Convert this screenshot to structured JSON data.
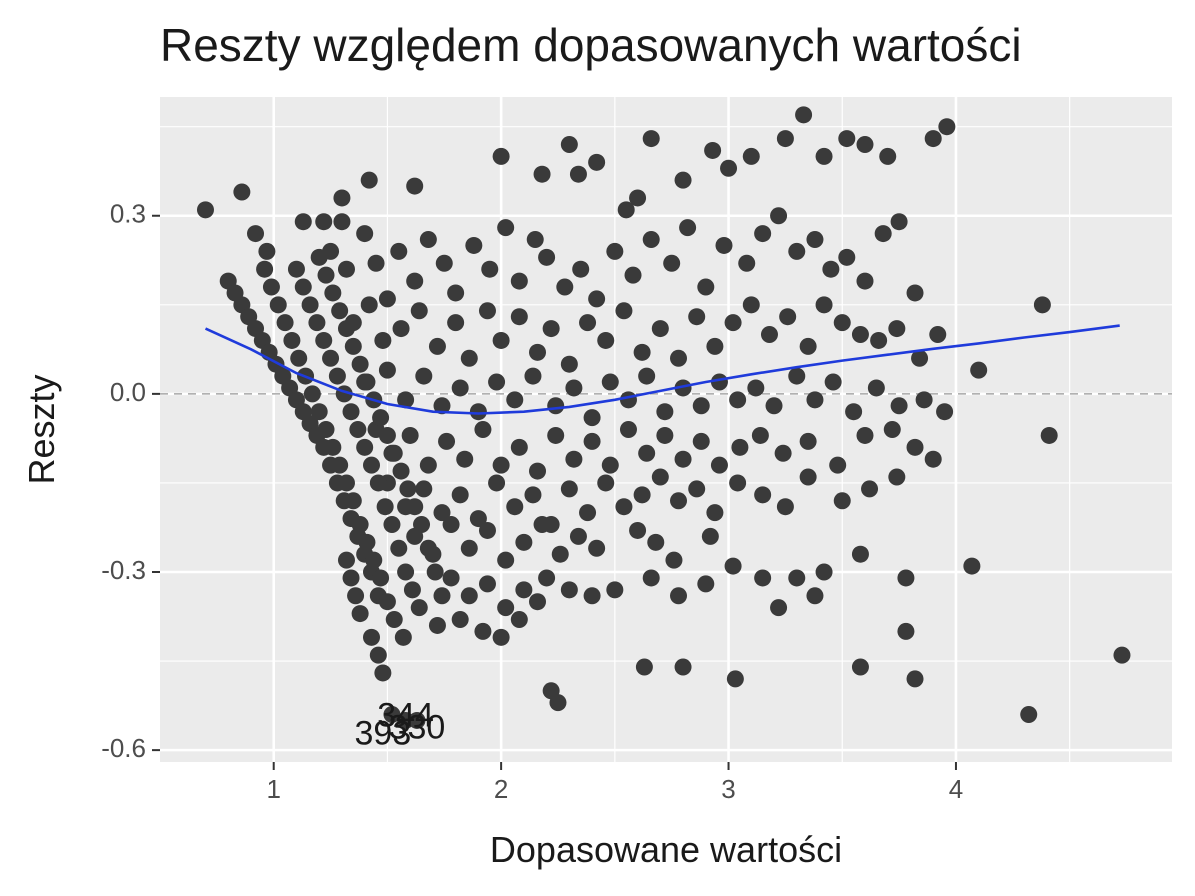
{
  "chart_data": {
    "type": "scatter",
    "title": "Reszty względem dopasowanych wartości",
    "xlabel": "Dopasowane wartości",
    "ylabel": "Reszty",
    "xlim": [
      0.5,
      4.95
    ],
    "ylim": [
      -0.62,
      0.5
    ],
    "x_ticks": [
      1,
      2,
      3,
      4
    ],
    "x_tick_labels": [
      "1",
      "2",
      "3",
      "4"
    ],
    "y_ticks": [
      -0.6,
      -0.3,
      0.0,
      0.3
    ],
    "y_tick_labels": [
      "-0.6",
      "-0.3",
      "0.0",
      "0.3"
    ],
    "grid": true,
    "reference_line": {
      "y": 0.0,
      "style": "dashed"
    },
    "colors": {
      "panel": "#ebebeb",
      "grid": "#ffffff",
      "points": "#3a3a3a",
      "smooth": "#1f3bdb",
      "reference": "#a6a6a6"
    },
    "smooth_line": {
      "x": [
        0.7,
        0.9,
        1.1,
        1.3,
        1.5,
        1.7,
        1.9,
        2.1,
        2.3,
        2.5,
        2.7,
        2.9,
        3.1,
        3.3,
        3.5,
        3.7,
        3.9,
        4.1,
        4.3,
        4.5,
        4.72
      ],
      "y": [
        0.11,
        0.075,
        0.035,
        0.005,
        -0.017,
        -0.03,
        -0.033,
        -0.03,
        -0.022,
        -0.01,
        0.005,
        0.02,
        0.033,
        0.045,
        0.056,
        0.066,
        0.076,
        0.085,
        0.095,
        0.104,
        0.115
      ]
    },
    "points": [
      [
        0.7,
        0.31
      ],
      [
        0.86,
        0.34
      ],
      [
        0.92,
        0.27
      ],
      [
        0.97,
        0.24
      ],
      [
        1.13,
        0.29
      ],
      [
        1.22,
        0.29
      ],
      [
        1.3,
        0.29
      ],
      [
        1.42,
        0.36
      ],
      [
        1.62,
        0.35
      ],
      [
        1.3,
        0.33
      ],
      [
        2.0,
        0.4
      ],
      [
        2.18,
        0.37
      ],
      [
        2.3,
        0.42
      ],
      [
        2.34,
        0.37
      ],
      [
        2.42,
        0.39
      ],
      [
        2.6,
        0.33
      ],
      [
        2.66,
        0.43
      ],
      [
        2.8,
        0.36
      ],
      [
        2.93,
        0.41
      ],
      [
        3.0,
        0.38
      ],
      [
        3.25,
        0.43
      ],
      [
        3.33,
        0.47
      ],
      [
        3.42,
        0.4
      ],
      [
        3.52,
        0.43
      ],
      [
        3.6,
        0.42
      ],
      [
        3.7,
        0.4
      ],
      [
        3.9,
        0.43
      ],
      [
        3.96,
        0.45
      ],
      [
        3.1,
        0.4
      ],
      [
        2.55,
        0.31
      ],
      [
        1.25,
        0.24
      ],
      [
        1.32,
        0.21
      ],
      [
        1.4,
        0.27
      ],
      [
        1.45,
        0.22
      ],
      [
        1.5,
        0.16
      ],
      [
        1.55,
        0.24
      ],
      [
        1.62,
        0.19
      ],
      [
        1.68,
        0.26
      ],
      [
        1.75,
        0.22
      ],
      [
        1.8,
        0.17
      ],
      [
        1.88,
        0.25
      ],
      [
        1.95,
        0.21
      ],
      [
        2.02,
        0.28
      ],
      [
        2.08,
        0.19
      ],
      [
        2.15,
        0.26
      ],
      [
        2.2,
        0.23
      ],
      [
        2.28,
        0.18
      ],
      [
        2.35,
        0.21
      ],
      [
        2.42,
        0.16
      ],
      [
        2.5,
        0.24
      ],
      [
        2.58,
        0.2
      ],
      [
        2.66,
        0.26
      ],
      [
        2.75,
        0.22
      ],
      [
        2.82,
        0.28
      ],
      [
        2.9,
        0.18
      ],
      [
        2.98,
        0.25
      ],
      [
        3.08,
        0.22
      ],
      [
        3.15,
        0.27
      ],
      [
        3.22,
        0.3
      ],
      [
        3.3,
        0.24
      ],
      [
        3.38,
        0.26
      ],
      [
        3.45,
        0.21
      ],
      [
        3.52,
        0.23
      ],
      [
        3.6,
        0.19
      ],
      [
        3.68,
        0.27
      ],
      [
        3.75,
        0.29
      ],
      [
        3.82,
        0.17
      ],
      [
        1.35,
        0.12
      ],
      [
        1.42,
        0.15
      ],
      [
        1.48,
        0.09
      ],
      [
        1.56,
        0.11
      ],
      [
        1.64,
        0.14
      ],
      [
        1.72,
        0.08
      ],
      [
        1.8,
        0.12
      ],
      [
        1.86,
        0.06
      ],
      [
        1.94,
        0.14
      ],
      [
        2.0,
        0.09
      ],
      [
        2.08,
        0.13
      ],
      [
        2.16,
        0.07
      ],
      [
        2.22,
        0.11
      ],
      [
        2.3,
        0.05
      ],
      [
        2.38,
        0.12
      ],
      [
        2.46,
        0.09
      ],
      [
        2.54,
        0.14
      ],
      [
        2.62,
        0.07
      ],
      [
        2.7,
        0.11
      ],
      [
        2.78,
        0.06
      ],
      [
        2.86,
        0.13
      ],
      [
        2.94,
        0.08
      ],
      [
        3.02,
        0.12
      ],
      [
        3.1,
        0.15
      ],
      [
        3.18,
        0.1
      ],
      [
        3.26,
        0.13
      ],
      [
        3.35,
        0.08
      ],
      [
        3.42,
        0.15
      ],
      [
        3.5,
        0.12
      ],
      [
        3.58,
        0.1
      ],
      [
        3.66,
        0.09
      ],
      [
        3.74,
        0.11
      ],
      [
        3.84,
        0.06
      ],
      [
        3.92,
        0.1
      ],
      [
        4.1,
        0.04
      ],
      [
        4.38,
        0.15
      ],
      [
        1.4,
        0.02
      ],
      [
        1.5,
        0.04
      ],
      [
        1.58,
        -0.01
      ],
      [
        1.66,
        0.03
      ],
      [
        1.74,
        -0.02
      ],
      [
        1.82,
        0.01
      ],
      [
        1.9,
        -0.03
      ],
      [
        1.98,
        0.02
      ],
      [
        2.06,
        -0.01
      ],
      [
        2.14,
        0.03
      ],
      [
        2.24,
        -0.02
      ],
      [
        2.32,
        0.01
      ],
      [
        2.4,
        -0.04
      ],
      [
        2.48,
        0.02
      ],
      [
        2.56,
        -0.01
      ],
      [
        2.64,
        0.03
      ],
      [
        2.72,
        -0.03
      ],
      [
        2.8,
        0.01
      ],
      [
        2.88,
        -0.02
      ],
      [
        2.96,
        0.02
      ],
      [
        3.04,
        -0.01
      ],
      [
        3.12,
        0.01
      ],
      [
        3.2,
        -0.02
      ],
      [
        3.3,
        0.03
      ],
      [
        3.38,
        -0.01
      ],
      [
        3.46,
        0.02
      ],
      [
        3.55,
        -0.03
      ],
      [
        3.65,
        0.01
      ],
      [
        3.75,
        -0.02
      ],
      [
        3.86,
        -0.01
      ],
      [
        3.95,
        -0.03
      ],
      [
        1.45,
        -0.06
      ],
      [
        1.52,
        -0.1
      ],
      [
        1.6,
        -0.07
      ],
      [
        1.68,
        -0.12
      ],
      [
        1.76,
        -0.08
      ],
      [
        1.84,
        -0.11
      ],
      [
        1.92,
        -0.06
      ],
      [
        2.0,
        -0.12
      ],
      [
        2.08,
        -0.09
      ],
      [
        2.16,
        -0.13
      ],
      [
        2.24,
        -0.07
      ],
      [
        2.32,
        -0.11
      ],
      [
        2.4,
        -0.08
      ],
      [
        2.48,
        -0.12
      ],
      [
        2.56,
        -0.06
      ],
      [
        2.64,
        -0.1
      ],
      [
        2.72,
        -0.07
      ],
      [
        2.8,
        -0.11
      ],
      [
        2.88,
        -0.08
      ],
      [
        2.96,
        -0.12
      ],
      [
        3.05,
        -0.09
      ],
      [
        3.14,
        -0.07
      ],
      [
        3.24,
        -0.1
      ],
      [
        3.35,
        -0.08
      ],
      [
        3.48,
        -0.12
      ],
      [
        3.6,
        -0.07
      ],
      [
        3.72,
        -0.06
      ],
      [
        3.82,
        -0.09
      ],
      [
        4.41,
        -0.07
      ],
      [
        1.5,
        -0.15
      ],
      [
        1.58,
        -0.19
      ],
      [
        1.66,
        -0.16
      ],
      [
        1.74,
        -0.2
      ],
      [
        1.82,
        -0.17
      ],
      [
        1.9,
        -0.21
      ],
      [
        1.98,
        -0.15
      ],
      [
        2.06,
        -0.19
      ],
      [
        2.14,
        -0.17
      ],
      [
        2.22,
        -0.22
      ],
      [
        2.3,
        -0.16
      ],
      [
        2.38,
        -0.2
      ],
      [
        2.46,
        -0.15
      ],
      [
        2.54,
        -0.19
      ],
      [
        2.62,
        -0.17
      ],
      [
        2.7,
        -0.14
      ],
      [
        2.78,
        -0.18
      ],
      [
        2.86,
        -0.16
      ],
      [
        2.94,
        -0.2
      ],
      [
        3.04,
        -0.15
      ],
      [
        3.15,
        -0.17
      ],
      [
        3.25,
        -0.19
      ],
      [
        3.35,
        -0.14
      ],
      [
        3.5,
        -0.18
      ],
      [
        3.62,
        -0.16
      ],
      [
        3.74,
        -0.14
      ],
      [
        3.9,
        -0.11
      ],
      [
        1.62,
        -0.24
      ],
      [
        1.7,
        -0.27
      ],
      [
        1.78,
        -0.22
      ],
      [
        1.86,
        -0.26
      ],
      [
        1.94,
        -0.23
      ],
      [
        2.02,
        -0.28
      ],
      [
        2.1,
        -0.25
      ],
      [
        2.18,
        -0.22
      ],
      [
        2.26,
        -0.27
      ],
      [
        2.34,
        -0.24
      ],
      [
        2.42,
        -0.26
      ],
      [
        2.6,
        -0.23
      ],
      [
        2.68,
        -0.25
      ],
      [
        2.76,
        -0.28
      ],
      [
        2.92,
        -0.24
      ],
      [
        3.02,
        -0.29
      ],
      [
        3.3,
        -0.31
      ],
      [
        3.42,
        -0.3
      ],
      [
        3.58,
        -0.27
      ],
      [
        3.78,
        -0.31
      ],
      [
        4.07,
        -0.29
      ],
      [
        1.78,
        -0.31
      ],
      [
        1.86,
        -0.34
      ],
      [
        1.94,
        -0.32
      ],
      [
        2.02,
        -0.36
      ],
      [
        2.1,
        -0.33
      ],
      [
        2.2,
        -0.31
      ],
      [
        2.3,
        -0.33
      ],
      [
        2.4,
        -0.34
      ],
      [
        2.5,
        -0.33
      ],
      [
        2.66,
        -0.31
      ],
      [
        2.78,
        -0.34
      ],
      [
        2.9,
        -0.32
      ],
      [
        3.15,
        -0.31
      ],
      [
        3.22,
        -0.36
      ],
      [
        3.38,
        -0.34
      ],
      [
        1.72,
        -0.39
      ],
      [
        1.82,
        -0.38
      ],
      [
        1.92,
        -0.4
      ],
      [
        2.0,
        -0.41
      ],
      [
        2.08,
        -0.38
      ],
      [
        2.16,
        -0.35
      ],
      [
        3.78,
        -0.4
      ],
      [
        1.52,
        -0.54
      ],
      [
        1.58,
        -0.55
      ],
      [
        1.63,
        -0.55
      ],
      [
        2.22,
        -0.5
      ],
      [
        2.25,
        -0.52
      ],
      [
        2.63,
        -0.46
      ],
      [
        2.8,
        -0.46
      ],
      [
        3.03,
        -0.48
      ],
      [
        3.58,
        -0.46
      ],
      [
        3.82,
        -0.48
      ],
      [
        4.32,
        -0.54
      ],
      [
        4.73,
        -0.44
      ],
      [
        0.8,
        0.19
      ],
      [
        0.83,
        0.17
      ],
      [
        0.86,
        0.15
      ],
      [
        0.89,
        0.13
      ],
      [
        0.92,
        0.11
      ],
      [
        0.95,
        0.09
      ],
      [
        0.98,
        0.07
      ],
      [
        1.01,
        0.05
      ],
      [
        1.04,
        0.03
      ],
      [
        1.07,
        0.01
      ],
      [
        1.1,
        -0.01
      ],
      [
        1.13,
        -0.03
      ],
      [
        1.16,
        -0.05
      ],
      [
        1.19,
        -0.07
      ],
      [
        1.22,
        -0.09
      ],
      [
        1.25,
        -0.12
      ],
      [
        1.28,
        -0.15
      ],
      [
        1.31,
        -0.18
      ],
      [
        1.34,
        -0.21
      ],
      [
        1.37,
        -0.24
      ],
      [
        1.4,
        -0.27
      ],
      [
        1.43,
        -0.3
      ],
      [
        1.46,
        -0.34
      ],
      [
        0.96,
        0.21
      ],
      [
        0.99,
        0.18
      ],
      [
        1.02,
        0.15
      ],
      [
        1.05,
        0.12
      ],
      [
        1.08,
        0.09
      ],
      [
        1.11,
        0.06
      ],
      [
        1.14,
        0.03
      ],
      [
        1.17,
        0.0
      ],
      [
        1.2,
        -0.03
      ],
      [
        1.23,
        -0.06
      ],
      [
        1.26,
        -0.09
      ],
      [
        1.29,
        -0.12
      ],
      [
        1.32,
        -0.15
      ],
      [
        1.35,
        -0.18
      ],
      [
        1.38,
        -0.22
      ],
      [
        1.41,
        -0.25
      ],
      [
        1.44,
        -0.28
      ],
      [
        1.47,
        -0.31
      ],
      [
        1.5,
        -0.35
      ],
      [
        1.53,
        -0.38
      ],
      [
        1.57,
        -0.41
      ],
      [
        1.1,
        0.21
      ],
      [
        1.13,
        0.18
      ],
      [
        1.16,
        0.15
      ],
      [
        1.19,
        0.12
      ],
      [
        1.22,
        0.09
      ],
      [
        1.25,
        0.06
      ],
      [
        1.28,
        0.03
      ],
      [
        1.31,
        0.0
      ],
      [
        1.34,
        -0.03
      ],
      [
        1.37,
        -0.06
      ],
      [
        1.4,
        -0.09
      ],
      [
        1.43,
        -0.12
      ],
      [
        1.46,
        -0.15
      ],
      [
        1.49,
        -0.19
      ],
      [
        1.52,
        -0.22
      ],
      [
        1.55,
        -0.26
      ],
      [
        1.58,
        -0.3
      ],
      [
        1.61,
        -0.33
      ],
      [
        1.64,
        -0.36
      ],
      [
        1.2,
        0.23
      ],
      [
        1.23,
        0.2
      ],
      [
        1.26,
        0.17
      ],
      [
        1.29,
        0.14
      ],
      [
        1.32,
        0.11
      ],
      [
        1.35,
        0.08
      ],
      [
        1.38,
        0.05
      ],
      [
        1.41,
        0.02
      ],
      [
        1.44,
        -0.01
      ],
      [
        1.47,
        -0.04
      ],
      [
        1.5,
        -0.07
      ],
      [
        1.53,
        -0.1
      ],
      [
        1.56,
        -0.13
      ],
      [
        1.59,
        -0.16
      ],
      [
        1.62,
        -0.19
      ],
      [
        1.65,
        -0.22
      ],
      [
        1.68,
        -0.26
      ],
      [
        1.71,
        -0.3
      ],
      [
        1.74,
        -0.34
      ],
      [
        1.32,
        -0.28
      ],
      [
        1.34,
        -0.31
      ],
      [
        1.36,
        -0.34
      ],
      [
        1.38,
        -0.37
      ],
      [
        1.43,
        -0.41
      ],
      [
        1.46,
        -0.44
      ],
      [
        1.48,
        -0.47
      ]
    ],
    "annotations": [
      {
        "text": "344",
        "x": 1.58,
        "y": -0.545
      },
      {
        "text": "330",
        "x": 1.63,
        "y": -0.565
      },
      {
        "text": "393",
        "x": 1.48,
        "y": -0.575
      }
    ]
  }
}
